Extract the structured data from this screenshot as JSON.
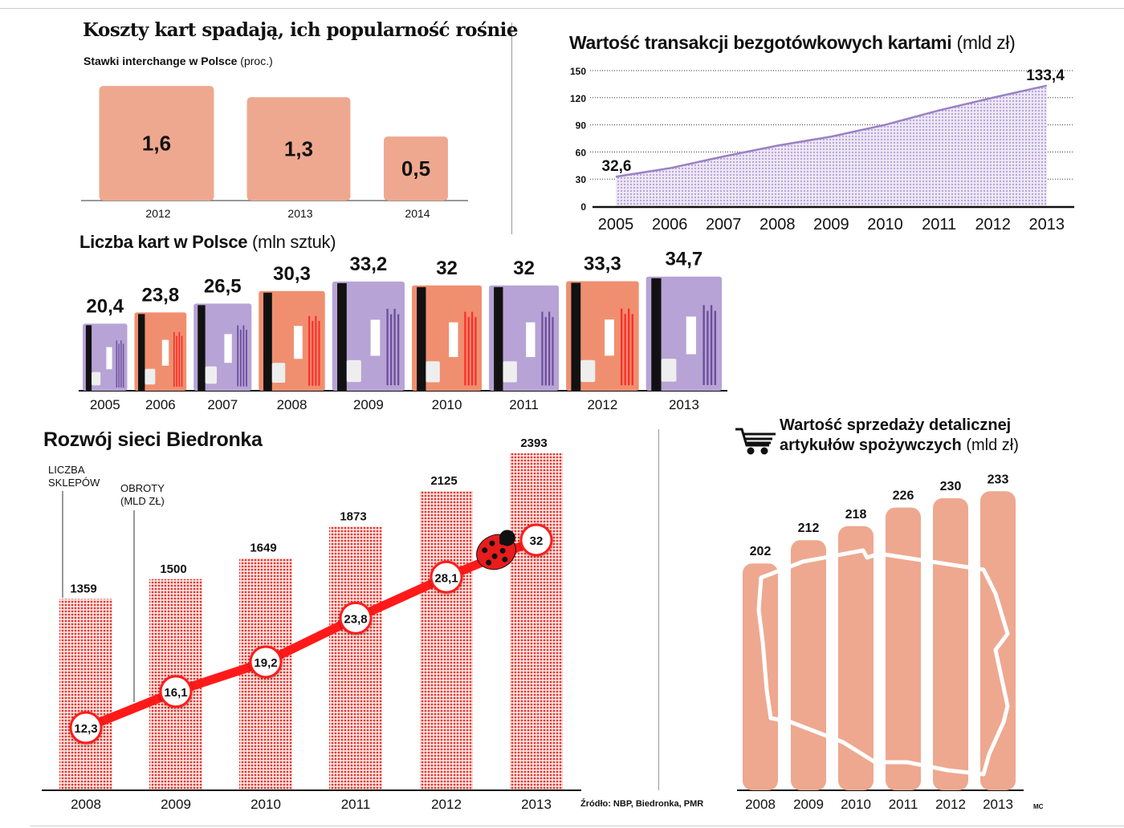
{
  "interchange": {
    "title": "Koszty kart spadają, ich popularność rośnie",
    "subtitle": "Stawki interchange w Polsce",
    "unit": "(proc.)"
  },
  "transactions": {
    "title": "Wartość transakcji bezgotówkowych kartami",
    "unit": "(mld zł)"
  },
  "cards": {
    "title": "Liczba kart w Polsce",
    "unit": "(mln sztuk)"
  },
  "biedronka": {
    "title": "Rozwój sieci Biedronka",
    "stores_label_1": "LICZBA",
    "stores_label_2": "SKLEPÓW",
    "turnover_label_1": "OBROTY",
    "turnover_label_2": "(MLD ZŁ)"
  },
  "retail": {
    "title_1": "Wartość sprzedaży detalicznej",
    "title_2": "artykułów spożywczych",
    "unit": "(mld zł)",
    "icon": "shopping-cart-icon"
  },
  "source": "Źródło: NBP, Biedronka, PMR",
  "author": "MC",
  "colors": {
    "salmon": "#eea88f",
    "purple": "#b7a3d5",
    "line_purple": "#9a82c4",
    "red": "#ff1a1a",
    "card_salmon": "#ef8f6f"
  },
  "chart_data": [
    {
      "type": "bar",
      "title": "Stawki interchange w Polsce",
      "unit": "proc.",
      "categories": [
        "2012",
        "2013",
        "2014"
      ],
      "values": [
        1.6,
        1.3,
        0.5
      ],
      "labels": [
        "1,6",
        "1,3",
        "0,5"
      ]
    },
    {
      "type": "area",
      "title": "Wartość transakcji bezgotówkowych kartami",
      "unit": "mld zł",
      "x": [
        "2005",
        "2006",
        "2007",
        "2008",
        "2009",
        "2010",
        "2011",
        "2012",
        "2013"
      ],
      "values": [
        32.6,
        42,
        55,
        67,
        77,
        90,
        106,
        120,
        133.4
      ],
      "data_labels": {
        "2005": "32,6",
        "2013": "133,4"
      },
      "ylim": [
        0,
        150
      ],
      "yticks": [
        "0",
        "30",
        "60",
        "90",
        "120",
        "150"
      ],
      "grid": true
    },
    {
      "type": "bar",
      "title": "Liczba kart w Polsce",
      "unit": "mln sztuk",
      "categories": [
        "2005",
        "2006",
        "2007",
        "2008",
        "2009",
        "2010",
        "2011",
        "2012",
        "2013"
      ],
      "values": [
        20.4,
        23.8,
        26.5,
        30.3,
        33.2,
        32,
        32,
        33.3,
        34.7
      ],
      "labels": [
        "20,4",
        "23,8",
        "26,5",
        "30,3",
        "33,2",
        "32",
        "32",
        "33,3",
        "34,7"
      ]
    },
    {
      "type": "bar",
      "title": "Rozwój sieci Biedronka",
      "categories": [
        "2008",
        "2009",
        "2010",
        "2011",
        "2012",
        "2013"
      ],
      "series": [
        {
          "name": "LICZBA SKLEPÓW",
          "type": "bar",
          "values": [
            1359,
            1500,
            1649,
            1873,
            2125,
            2393
          ],
          "labels": [
            "1359",
            "1500",
            "1649",
            "1873",
            "2125",
            "2393"
          ]
        },
        {
          "name": "OBROTY (MLD ZŁ)",
          "type": "line",
          "values": [
            12.3,
            16.1,
            19.2,
            23.8,
            28.1,
            32
          ],
          "labels": [
            "12,3",
            "16,1",
            "19,2",
            "23,8",
            "28,1",
            "32"
          ]
        }
      ]
    },
    {
      "type": "bar",
      "title": "Wartość sprzedaży detalicznej artykułów spożywczych",
      "unit": "mld zł",
      "categories": [
        "2008",
        "2009",
        "2010",
        "2011",
        "2012",
        "2013"
      ],
      "values": [
        202,
        212,
        218,
        226,
        230,
        233
      ],
      "labels": [
        "202",
        "212",
        "218",
        "226",
        "230",
        "233"
      ]
    }
  ]
}
